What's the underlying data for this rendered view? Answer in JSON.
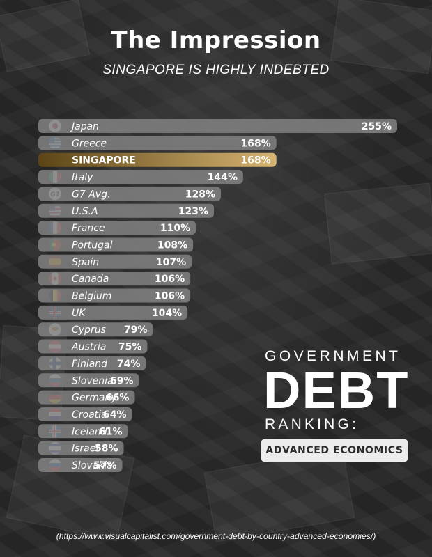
{
  "header": {
    "title": "The Impression",
    "subtitle": "SINGAPORE IS HIGHLY INDEBTED"
  },
  "side_panel": {
    "line1": "GOVERNMENT",
    "line2": "DEBT",
    "line3": "RANKING:",
    "badge": "ADVANCED ECONOMICS"
  },
  "footer": {
    "source": "(https://www.visualcapitalist.com/government-debt-by-country-advanced-economies/)"
  },
  "colors": {
    "bar": "#808080",
    "highlight_start": "#5c4416",
    "highlight_end": "#d6b572",
    "text": "#ffffff"
  },
  "chart_data": {
    "type": "bar",
    "orientation": "horizontal",
    "title": "The Impression",
    "subtitle": "SINGAPORE IS HIGHLY INDEBTED",
    "categories": [
      "Japan",
      "Greece",
      "SINGAPORE",
      "Italy",
      "G7 Avg.",
      "U.S.A",
      "France",
      "Portugal",
      "Spain",
      "Canada",
      "Belgium",
      "UK",
      "Cyprus",
      "Austria",
      "Finland",
      "Slovenia",
      "Germany",
      "Croatia",
      "Iceland",
      "Israel",
      "Slovakia"
    ],
    "values": [
      255,
      168,
      168,
      144,
      128,
      123,
      110,
      108,
      107,
      106,
      106,
      104,
      79,
      75,
      74,
      69,
      66,
      64,
      61,
      58,
      57
    ],
    "value_labels": [
      "255%",
      "168%",
      "168%",
      "144%",
      "128%",
      "123%",
      "110%",
      "108%",
      "107%",
      "106%",
      "106%",
      "104%",
      "79%",
      "75%",
      "74%",
      "69%",
      "66%",
      "64%",
      "61%",
      "58%",
      "57%"
    ],
    "highlighted": "SINGAPORE",
    "unit": "%"
  }
}
